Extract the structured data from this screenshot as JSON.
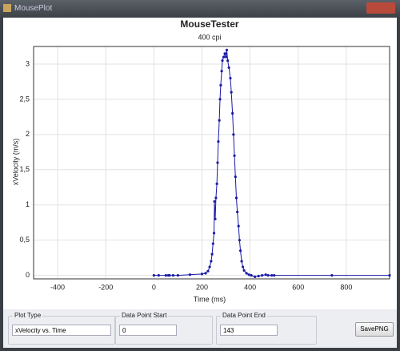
{
  "window": {
    "title": "MousePlot"
  },
  "chart_data": {
    "type": "line",
    "title": "MouseTester",
    "subtitle": "400 cpi",
    "x_label": "Time (ms)",
    "y_label": "xVelocity (m/s)",
    "x": [
      0,
      20,
      50,
      60,
      65,
      80,
      100,
      150,
      200,
      215,
      225,
      232,
      238,
      242,
      246,
      250,
      252,
      255,
      258,
      262,
      265,
      268,
      272,
      275,
      278,
      282,
      285,
      290,
      295,
      300,
      303,
      307,
      312,
      318,
      322,
      327,
      331,
      335,
      339,
      343,
      347,
      352,
      356,
      360,
      365,
      370,
      375,
      385,
      395,
      405,
      420,
      435,
      450,
      465,
      475,
      490,
      500,
      740,
      980
    ],
    "series": [
      {
        "name": "xVelocity",
        "color": "#1a1aa8",
        "values": [
          0,
          0,
          0,
          0,
          0,
          0,
          0,
          0.01,
          0.02,
          0.03,
          0.06,
          0.12,
          0.2,
          0.3,
          0.45,
          0.6,
          1.05,
          0.8,
          1.1,
          1.3,
          1.6,
          1.9,
          2.2,
          2.5,
          2.7,
          2.9,
          3.05,
          3.1,
          3.15,
          3.1,
          3.2,
          3.05,
          2.95,
          2.8,
          2.6,
          2.3,
          2.0,
          1.7,
          1.4,
          1.1,
          0.9,
          0.7,
          0.5,
          0.35,
          0.2,
          0.12,
          0.07,
          0.03,
          0.01,
          0,
          -0.02,
          -0.01,
          0,
          0.01,
          0,
          0,
          0,
          0,
          0
        ]
      }
    ],
    "xlim": [
      -500,
      980
    ],
    "ylim": [
      -0.05,
      3.25
    ],
    "xticks": [
      -400,
      -200,
      0,
      200,
      400,
      600,
      800
    ],
    "yticks": [
      0,
      {
        "value": 0.5,
        "label": "0,5"
      },
      1,
      {
        "value": 1.5,
        "label": "1,5"
      },
      2,
      {
        "value": 2.5,
        "label": "2,5"
      },
      3
    ],
    "grid": true
  },
  "controls": {
    "plot_type": {
      "label": "Plot Type",
      "value": "xVelocity vs. Time"
    },
    "start": {
      "label": "Data Point Start",
      "value": "0"
    },
    "end": {
      "label": "Data Point End",
      "value": "143"
    },
    "save": {
      "label": "SavePNG"
    }
  }
}
